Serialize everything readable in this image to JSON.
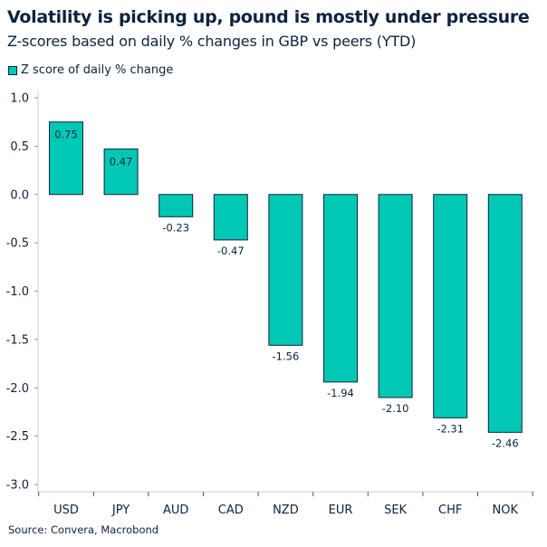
{
  "chart_data": {
    "type": "bar",
    "title": "Volatility is picking up, pound is mostly under pressure",
    "subtitle": "Z-scores based on daily % changes in GBP vs peers (YTD)",
    "categories": [
      "USD",
      "JPY",
      "AUD",
      "CAD",
      "NZD",
      "EUR",
      "SEK",
      "CHF",
      "NOK"
    ],
    "series": [
      {
        "name": "Z score of daily % change",
        "values": [
          0.75,
          0.47,
          -0.23,
          -0.47,
          -1.56,
          -1.94,
          -2.1,
          -2.31,
          -2.46
        ],
        "labels": [
          "0.75",
          "0.47",
          "-0.23",
          "-0.47",
          "-1.56",
          "-1.94",
          "-2.10",
          "-2.31",
          "-2.46"
        ]
      }
    ],
    "yticks": [
      "1.0",
      "0.5",
      "0.0",
      "-0.5",
      "-1.0",
      "-1.5",
      "-2.0",
      "-2.5",
      "-3.0"
    ],
    "ylim": [
      -3.0,
      1.0
    ],
    "grid": false,
    "legend": "top-left",
    "colors": {
      "bar": "#00c8b4",
      "outline": "#0b2341"
    },
    "source": "Source: Convera, Macrobond"
  }
}
